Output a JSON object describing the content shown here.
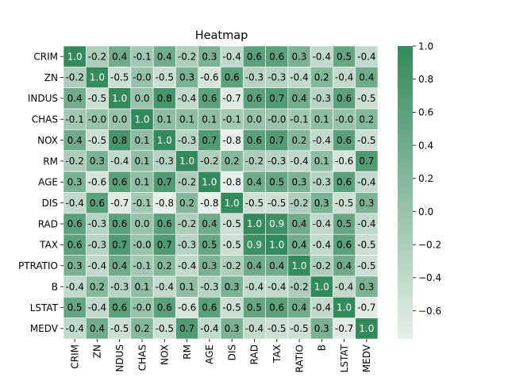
{
  "chart_data": {
    "type": "heatmap",
    "title": "Heatmap",
    "row_labels": [
      "CRIM",
      "ZN",
      "INDUS",
      "CHAS",
      "NOX",
      "RM",
      "AGE",
      "DIS",
      "RAD",
      "TAX",
      "PTRATIO",
      "B",
      "LSTAT",
      "MEDV"
    ],
    "col_labels": [
      "CRIM",
      "ZN",
      "NDUS",
      "CHAS",
      "NOX",
      "RM",
      "AGE",
      "DIS",
      "RAD",
      "TAX",
      "RATIO",
      "B",
      "LSTAT",
      "MEDV"
    ],
    "values": [
      [
        1.0,
        -0.2,
        0.4,
        -0.1,
        0.4,
        -0.2,
        0.3,
        -0.4,
        0.6,
        0.6,
        0.3,
        -0.4,
        0.5,
        -0.4
      ],
      [
        -0.2,
        1.0,
        -0.5,
        -0.0,
        -0.5,
        0.3,
        -0.6,
        0.6,
        -0.3,
        -0.3,
        -0.4,
        0.2,
        -0.4,
        0.4
      ],
      [
        0.4,
        -0.5,
        1.0,
        0.0,
        0.8,
        -0.4,
        0.6,
        -0.7,
        0.6,
        0.7,
        0.4,
        -0.3,
        0.6,
        -0.5
      ],
      [
        -0.1,
        -0.0,
        0.0,
        1.0,
        0.1,
        0.1,
        0.1,
        -0.1,
        0.0,
        -0.0,
        -0.1,
        0.1,
        -0.0,
        0.2
      ],
      [
        0.4,
        -0.5,
        0.8,
        0.1,
        1.0,
        -0.3,
        0.7,
        -0.8,
        0.6,
        0.7,
        0.2,
        -0.4,
        0.6,
        -0.5
      ],
      [
        -0.2,
        0.3,
        -0.4,
        0.1,
        -0.3,
        1.0,
        -0.2,
        0.2,
        -0.2,
        -0.3,
        -0.4,
        0.1,
        -0.6,
        0.7
      ],
      [
        0.3,
        -0.6,
        0.6,
        0.1,
        0.7,
        -0.2,
        1.0,
        -0.8,
        0.4,
        0.5,
        0.3,
        -0.3,
        0.6,
        -0.4
      ],
      [
        -0.4,
        0.6,
        -0.7,
        -0.1,
        -0.8,
        0.2,
        -0.8,
        1.0,
        -0.5,
        -0.5,
        -0.2,
        0.3,
        -0.5,
        0.3
      ],
      [
        0.6,
        -0.3,
        0.6,
        0.0,
        0.6,
        -0.2,
        0.4,
        -0.5,
        1.0,
        0.9,
        0.4,
        -0.4,
        0.5,
        -0.4
      ],
      [
        0.6,
        -0.3,
        0.7,
        -0.0,
        0.7,
        -0.3,
        0.5,
        -0.5,
        0.9,
        1.0,
        0.4,
        -0.4,
        0.6,
        -0.5
      ],
      [
        0.3,
        -0.4,
        0.4,
        -0.1,
        0.2,
        -0.4,
        0.3,
        -0.2,
        0.4,
        0.4,
        1.0,
        -0.2,
        0.4,
        -0.5
      ],
      [
        -0.4,
        0.2,
        -0.3,
        0.1,
        -0.4,
        0.1,
        -0.3,
        0.3,
        -0.4,
        -0.4,
        -0.2,
        1.0,
        -0.4,
        0.3
      ],
      [
        0.5,
        -0.4,
        0.6,
        -0.0,
        0.6,
        -0.6,
        0.6,
        -0.5,
        0.5,
        0.6,
        0.4,
        -0.4,
        1.0,
        -0.7
      ],
      [
        -0.4,
        0.4,
        -0.5,
        0.2,
        -0.5,
        0.7,
        -0.4,
        0.3,
        -0.4,
        -0.5,
        -0.5,
        0.3,
        -0.7,
        1.0
      ]
    ],
    "colorbar": {
      "vmin": -0.77,
      "vmax": 1.0,
      "ticks": [
        1.0,
        0.8,
        0.6,
        0.4,
        0.2,
        0.0,
        -0.2,
        -0.4,
        -0.6
      ],
      "tick_labels": [
        "1.0",
        "0.8",
        "0.6",
        "0.4",
        "0.2",
        "0.0",
        "−0.2",
        "−0.4",
        "−0.6"
      ]
    },
    "colors": {
      "low": "#e6efe9",
      "high": "#338a5a"
    },
    "grid": false
  }
}
